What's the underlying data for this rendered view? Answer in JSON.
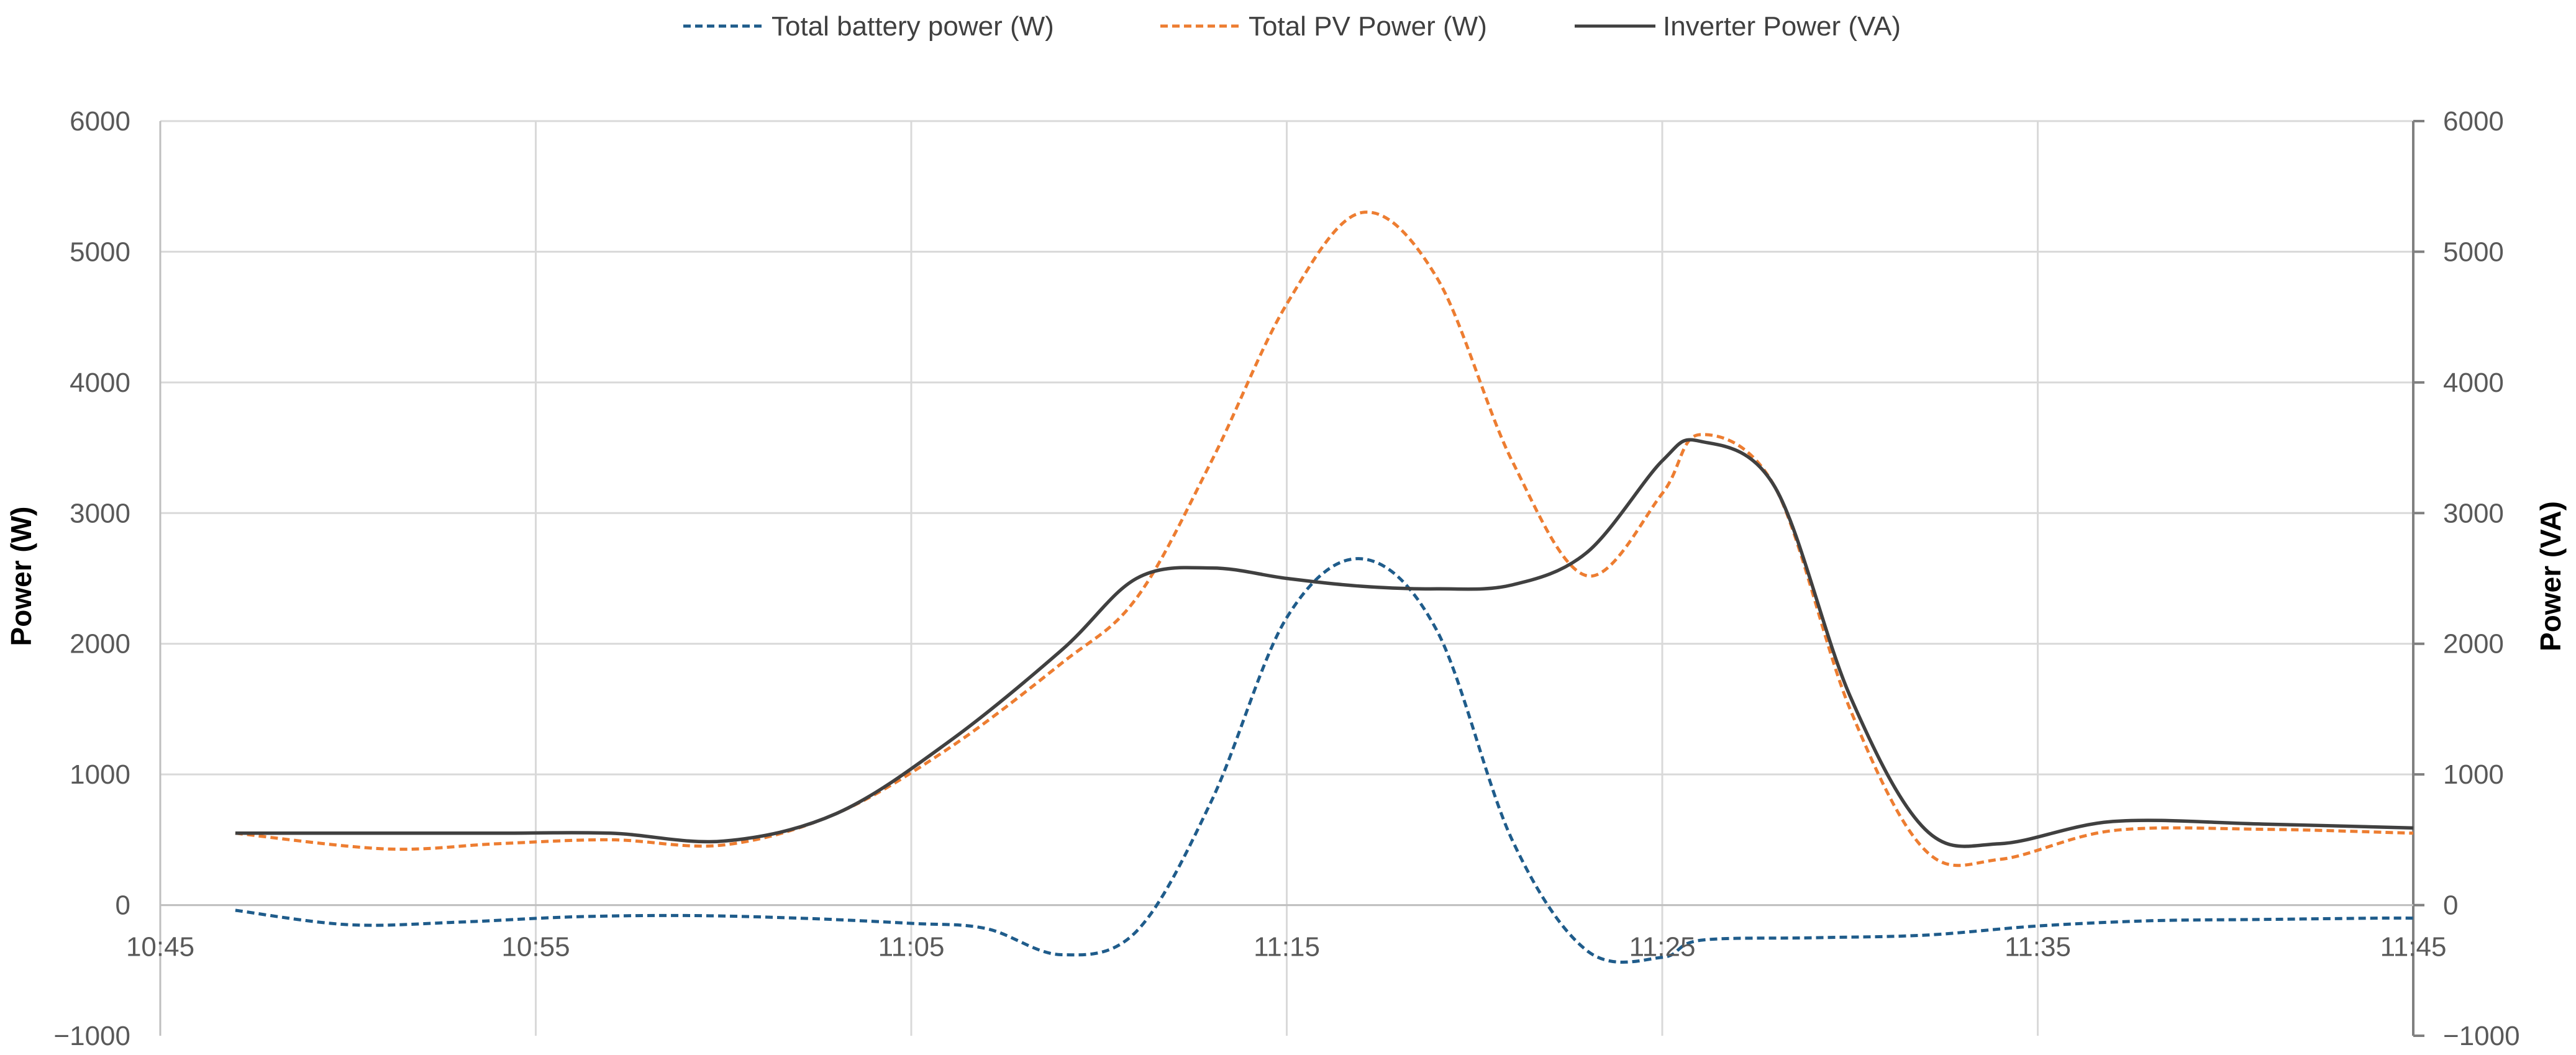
{
  "chart_data": {
    "type": "line",
    "legend_position": "top",
    "grid": true,
    "x_ticks": [
      "10:45",
      "10:55",
      "11:05",
      "11:15",
      "11:25",
      "11:35",
      "11:45"
    ],
    "xlim": [
      "10:45",
      "11:45"
    ],
    "y_left": {
      "label": "Power (W)",
      "lim": [
        -1000,
        6000
      ],
      "ticks": [
        "−1000",
        "0",
        "1000",
        "2000",
        "3000",
        "4000",
        "5000",
        "6000"
      ]
    },
    "y_right": {
      "label": "Power (VA)",
      "lim": [
        -1000,
        6000
      ],
      "ticks": [
        "−1000",
        "0",
        "1000",
        "2000",
        "3000",
        "4000",
        "5000",
        "6000"
      ]
    },
    "series": [
      {
        "name": "Total battery power (W)",
        "color": "#1f5c8b",
        "dash": "dashed",
        "axis": "left",
        "points": [
          [
            "10:47",
            -40
          ],
          [
            "10:50",
            -150
          ],
          [
            "10:53",
            -130
          ],
          [
            "10:56",
            -90
          ],
          [
            "10:59",
            -80
          ],
          [
            "11:02",
            -100
          ],
          [
            "11:05",
            -140
          ],
          [
            "11:07",
            -180
          ],
          [
            "11:09",
            -380
          ],
          [
            "11:11",
            -200
          ],
          [
            "11:13",
            800
          ],
          [
            "11:15",
            2200
          ],
          [
            "11:17",
            2650
          ],
          [
            "11:19",
            2100
          ],
          [
            "11:21",
            500
          ],
          [
            "11:23",
            -350
          ],
          [
            "11:25",
            -400
          ],
          [
            "11:26",
            -270
          ],
          [
            "11:29",
            -250
          ],
          [
            "11:32",
            -230
          ],
          [
            "11:35",
            -160
          ],
          [
            "11:38",
            -120
          ],
          [
            "11:41",
            -110
          ],
          [
            "11:44",
            -100
          ],
          [
            "11:45",
            -100
          ]
        ]
      },
      {
        "name": "Total PV Power (W)",
        "color": "#ed7d31",
        "dash": "dashed",
        "axis": "left",
        "points": [
          [
            "10:47",
            550
          ],
          [
            "10:51",
            430
          ],
          [
            "10:54",
            470
          ],
          [
            "10:57",
            500
          ],
          [
            "11:00",
            460
          ],
          [
            "11:03",
            700
          ],
          [
            "11:06",
            1200
          ],
          [
            "11:09",
            1850
          ],
          [
            "11:11",
            2350
          ],
          [
            "11:13",
            3400
          ],
          [
            "11:15",
            4600
          ],
          [
            "11:17",
            5300
          ],
          [
            "11:19",
            4800
          ],
          [
            "11:21",
            3400
          ],
          [
            "11:23",
            2520
          ],
          [
            "11:25",
            3150
          ],
          [
            "11:26",
            3600
          ],
          [
            "11:28",
            3200
          ],
          [
            "11:30",
            1500
          ],
          [
            "11:32",
            420
          ],
          [
            "11:34",
            350
          ],
          [
            "11:37",
            570
          ],
          [
            "11:41",
            580
          ],
          [
            "11:45",
            550
          ]
        ]
      },
      {
        "name": "Inverter Power (VA)",
        "color": "#404040",
        "dash": "solid",
        "axis": "right",
        "points": [
          [
            "10:47",
            550
          ],
          [
            "10:51",
            550
          ],
          [
            "10:54",
            550
          ],
          [
            "10:57",
            550
          ],
          [
            "11:00",
            490
          ],
          [
            "11:03",
            700
          ],
          [
            "11:06",
            1250
          ],
          [
            "11:09",
            1950
          ],
          [
            "11:11",
            2500
          ],
          [
            "11:13",
            2580
          ],
          [
            "11:15",
            2500
          ],
          [
            "11:17",
            2440
          ],
          [
            "11:19",
            2420
          ],
          [
            "11:21",
            2450
          ],
          [
            "11:23",
            2700
          ],
          [
            "11:25",
            3400
          ],
          [
            "11:26",
            3550
          ],
          [
            "11:28",
            3200
          ],
          [
            "11:30",
            1600
          ],
          [
            "11:32",
            580
          ],
          [
            "11:34",
            470
          ],
          [
            "11:37",
            640
          ],
          [
            "11:41",
            620
          ],
          [
            "11:45",
            590
          ]
        ]
      }
    ]
  }
}
